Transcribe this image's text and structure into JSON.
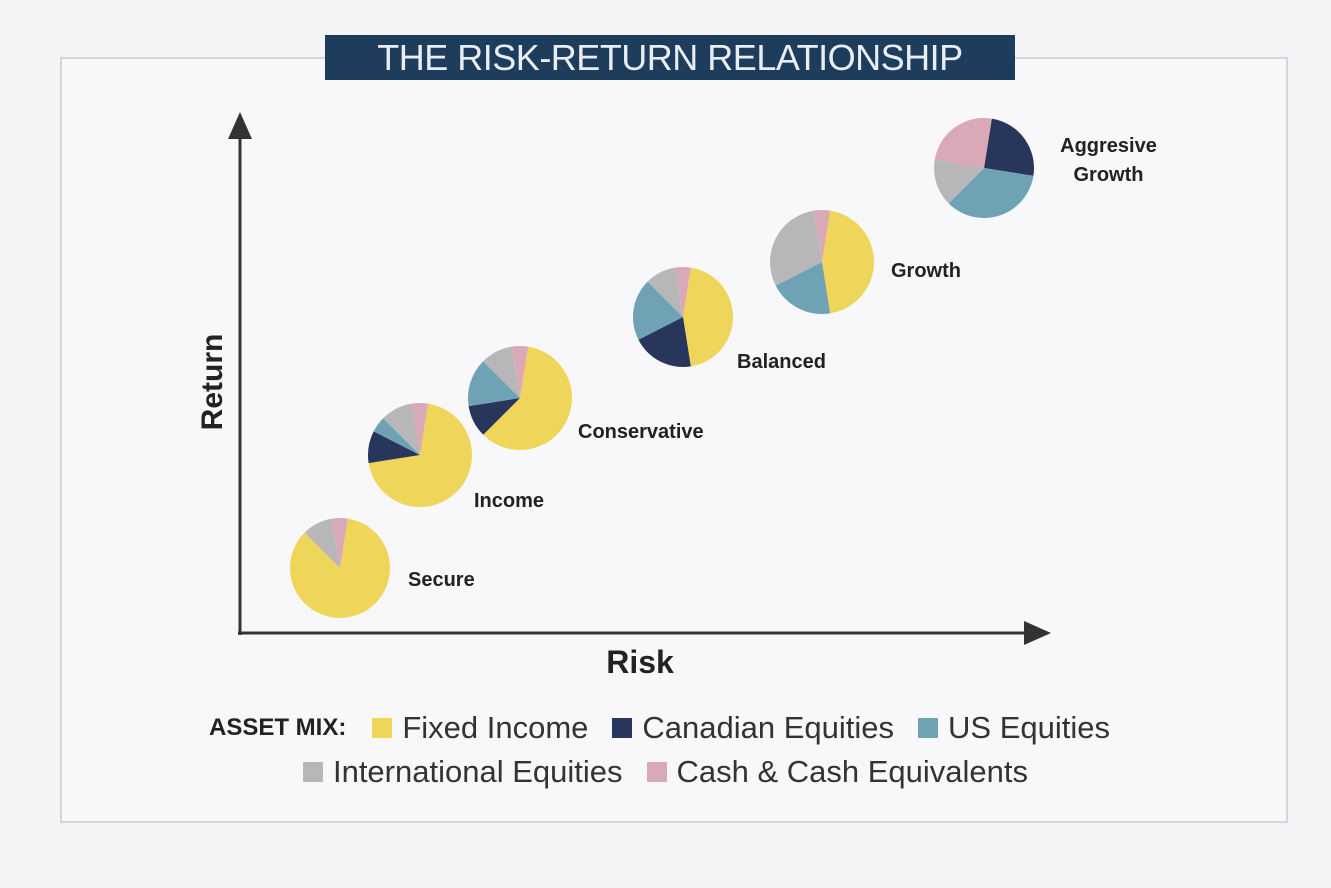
{
  "title": "THE RISK-RETURN RELATIONSHIP",
  "axes": {
    "y_label": "Return",
    "x_label": "Risk"
  },
  "legend": {
    "heading": "ASSET MIX:",
    "items": [
      {
        "label": "Fixed Income",
        "color": "#efd65a"
      },
      {
        "label": "Canadian Equities",
        "color": "#27365a"
      },
      {
        "label": "US Equities",
        "color": "#6ea2b4"
      },
      {
        "label": "International Equities",
        "color": "#b7b7b9"
      },
      {
        "label": "Cash & Cash Equivalents",
        "color": "#d9a9b7"
      }
    ]
  },
  "portfolios": [
    {
      "label": "Secure",
      "mix": [
        85,
        0,
        0,
        10,
        5
      ]
    },
    {
      "label": "Income",
      "mix": [
        70,
        10,
        5,
        10,
        5
      ]
    },
    {
      "label": "Conservative",
      "mix": [
        60,
        10,
        15,
        10,
        5
      ]
    },
    {
      "label": "Balanced",
      "mix": [
        45,
        20,
        20,
        10,
        5
      ]
    },
    {
      "label": "Growth",
      "mix": [
        45,
        0,
        20,
        30,
        5
      ]
    },
    {
      "label": "Aggresive Growth",
      "mix": [
        0,
        25,
        35,
        15,
        25
      ]
    }
  ]
}
